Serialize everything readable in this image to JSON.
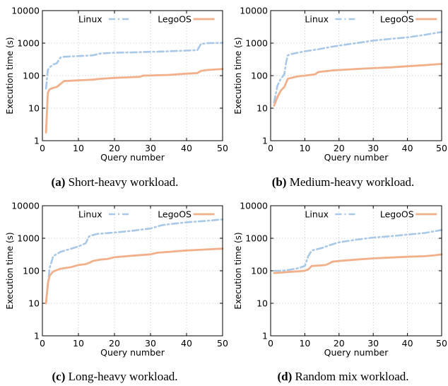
{
  "figure": {
    "colors": {
      "linux": "#a8c8e8",
      "legoos": "#f2b08a",
      "axis": "#000000",
      "grid": "#c8c8c8"
    }
  },
  "chart_data": [
    {
      "type": "line",
      "caption_label": "(a)",
      "caption_text": "Short-heavy workload.",
      "xlabel": "Query number",
      "ylabel": "Execution time (s)",
      "xlim": [
        0,
        50
      ],
      "ylim": [
        1,
        10000
      ],
      "yscale": "log",
      "xticks": [
        0,
        10,
        20,
        30,
        40,
        50
      ],
      "yticks": [
        1,
        10,
        100,
        1000,
        10000
      ],
      "grid": true,
      "legend_position": "top",
      "series": [
        {
          "name": "Linux",
          "style": "dashed",
          "x": [
            1,
            1.5,
            2,
            3,
            4,
            5,
            6,
            10,
            14,
            16,
            20,
            25,
            30,
            35,
            40,
            43,
            44,
            46,
            50
          ],
          "y": [
            40,
            150,
            180,
            220,
            240,
            360,
            380,
            400,
            420,
            480,
            510,
            520,
            540,
            560,
            590,
            610,
            950,
            1000,
            1020
          ]
        },
        {
          "name": "LegoOS",
          "style": "solid",
          "x": [
            1,
            1.5,
            2,
            3,
            4,
            5,
            6,
            10,
            14,
            16,
            20,
            25,
            27,
            28,
            35,
            40,
            43,
            44,
            46,
            50
          ],
          "y": [
            1.8,
            30,
            38,
            42,
            45,
            55,
            68,
            72,
            75,
            80,
            85,
            90,
            92,
            100,
            105,
            115,
            120,
            140,
            150,
            160
          ]
        }
      ]
    },
    {
      "type": "line",
      "caption_label": "(b)",
      "caption_text": "Medium-heavy workload.",
      "xlabel": "Query number",
      "ylabel": "Execution time (s)",
      "xlim": [
        0,
        50
      ],
      "ylim": [
        1,
        10000
      ],
      "yscale": "log",
      "xticks": [
        0,
        10,
        20,
        30,
        40,
        50
      ],
      "yticks": [
        1,
        10,
        100,
        1000,
        10000
      ],
      "grid": true,
      "legend_position": "top",
      "series": [
        {
          "name": "Linux",
          "style": "dashed",
          "x": [
            1,
            2,
            3,
            4,
            4.5,
            5,
            6,
            8,
            10,
            14,
            18,
            25,
            30,
            35,
            40,
            45,
            50
          ],
          "y": [
            15,
            50,
            80,
            110,
            250,
            420,
            460,
            510,
            560,
            650,
            780,
            1000,
            1200,
            1350,
            1500,
            1800,
            2200
          ]
        },
        {
          "name": "LegoOS",
          "style": "solid",
          "x": [
            1,
            2,
            3,
            4,
            5,
            6,
            8,
            10,
            13,
            14,
            18,
            25,
            30,
            35,
            40,
            45,
            50
          ],
          "y": [
            12,
            22,
            35,
            45,
            80,
            85,
            95,
            100,
            110,
            130,
            145,
            160,
            170,
            180,
            195,
            210,
            230
          ]
        }
      ]
    },
    {
      "type": "line",
      "caption_label": "(c)",
      "caption_text": "Long-heavy workload.",
      "xlabel": "Query number",
      "ylabel": "Execution time (s)",
      "xlim": [
        0,
        50
      ],
      "ylim": [
        1,
        10000
      ],
      "yscale": "log",
      "xticks": [
        0,
        10,
        20,
        30,
        40,
        50
      ],
      "yticks": [
        1,
        10,
        100,
        1000,
        10000
      ],
      "grid": true,
      "legend_position": "top",
      "series": [
        {
          "name": "Linux",
          "style": "dashed",
          "x": [
            1,
            2,
            3,
            5,
            8,
            10,
            12,
            13,
            15,
            20,
            25,
            30,
            33,
            35,
            40,
            45,
            50
          ],
          "y": [
            10,
            120,
            280,
            380,
            480,
            560,
            700,
            1150,
            1350,
            1500,
            1700,
            2000,
            2500,
            2700,
            3100,
            3400,
            3800
          ]
        },
        {
          "name": "LegoOS",
          "style": "solid",
          "x": [
            1,
            1.5,
            2,
            3,
            5,
            8,
            10,
            12,
            13,
            14,
            16,
            18,
            20,
            25,
            30,
            32,
            35,
            40,
            45,
            50
          ],
          "y": [
            10,
            40,
            70,
            95,
            115,
            130,
            150,
            160,
            175,
            200,
            220,
            230,
            260,
            290,
            320,
            360,
            380,
            420,
            450,
            480
          ]
        }
      ]
    },
    {
      "type": "line",
      "caption_label": "(d)",
      "caption_text": "Random mix workload.",
      "xlabel": "Query number",
      "ylabel": "Execution time (s)",
      "xlim": [
        0,
        50
      ],
      "ylim": [
        1,
        10000
      ],
      "yscale": "log",
      "xticks": [
        0,
        10,
        20,
        30,
        40,
        50
      ],
      "yticks": [
        1,
        10,
        100,
        1000,
        10000
      ],
      "grid": true,
      "legend_position": "top",
      "series": [
        {
          "name": "Linux",
          "style": "dashed",
          "x": [
            1,
            3,
            5,
            8,
            10,
            11,
            12,
            15,
            17,
            20,
            25,
            30,
            35,
            40,
            45,
            50
          ],
          "y": [
            100,
            100,
            105,
            120,
            140,
            280,
            420,
            500,
            600,
            750,
            900,
            1050,
            1150,
            1300,
            1450,
            1800
          ]
        },
        {
          "name": "LegoOS",
          "style": "solid",
          "x": [
            1,
            3,
            5,
            8,
            10,
            11,
            12,
            14,
            16,
            17,
            18,
            20,
            25,
            30,
            35,
            40,
            45,
            48,
            50
          ],
          "y": [
            85,
            88,
            92,
            96,
            100,
            110,
            140,
            145,
            150,
            165,
            190,
            200,
            220,
            240,
            255,
            270,
            280,
            300,
            320
          ]
        }
      ]
    }
  ]
}
